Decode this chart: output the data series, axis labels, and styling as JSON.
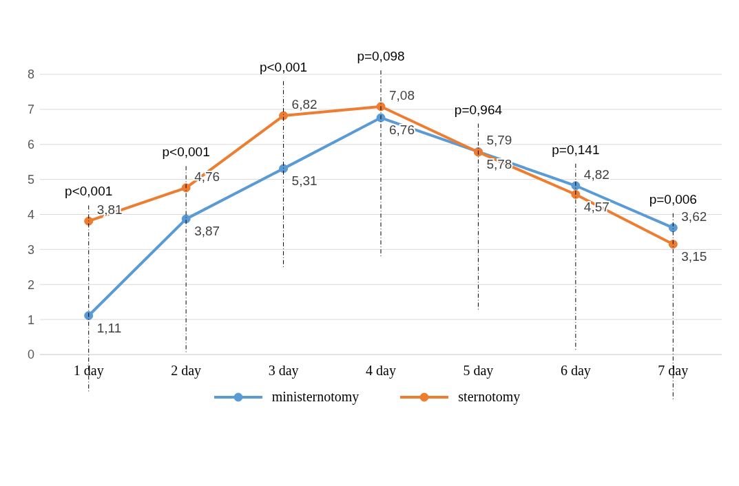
{
  "chart_data": {
    "type": "line",
    "categories": [
      "1 day",
      "2 day",
      "3 day",
      "4 day",
      "5 day",
      "6 day",
      "7 day"
    ],
    "series": [
      {
        "name": "ministernotomy",
        "color": "#5b9bd5",
        "values": [
          1.11,
          3.87,
          5.31,
          6.76,
          5.79,
          4.82,
          3.62
        ],
        "value_labels": [
          "1,11",
          "3,87",
          "5,31",
          "6,76",
          "5,79",
          "4,82",
          "3,62"
        ]
      },
      {
        "name": "sternotomy",
        "color": "#ed7d31",
        "values": [
          3.81,
          4.76,
          6.82,
          7.08,
          5.78,
          4.57,
          3.15
        ],
        "value_labels": [
          "3,81",
          "4,76",
          "6,82",
          "7,08",
          "5,78",
          "4,57",
          "3,15"
        ]
      }
    ],
    "ylim": [
      0,
      8
    ],
    "yticks": [
      0,
      1,
      2,
      3,
      4,
      5,
      6,
      7,
      8
    ],
    "grid": "y",
    "legend": "bottom",
    "marker": "circle",
    "line_style": "solid",
    "annotations": [
      "p<0,001",
      "p<0,001",
      "p<0,001",
      "p=0,098",
      "p=0,964",
      "p=0,141",
      "p=0,006"
    ]
  }
}
